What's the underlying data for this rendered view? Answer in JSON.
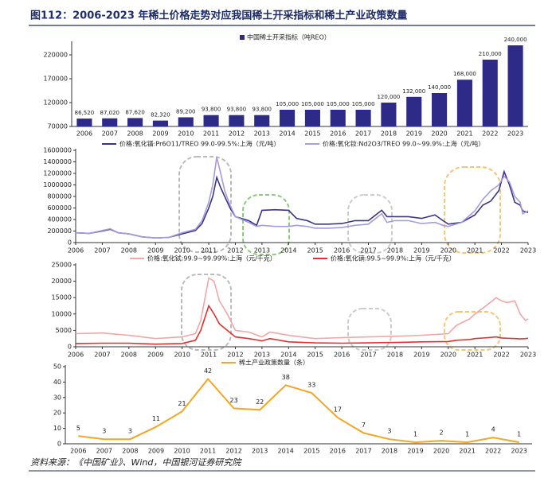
{
  "title": "图112：2006-2023 年稀土价格走势对应我国稀土开采指标和稀土产业政策数量",
  "source": "资料来源：《中国矿业》、Wind，中国银河证券研究院",
  "chart_data": [
    {
      "type": "bar",
      "categories": [
        "2006",
        "2007",
        "2008",
        "2009",
        "2010",
        "2011",
        "2012",
        "2013",
        "2014",
        "2015",
        "2016",
        "2017",
        "2018",
        "2019",
        "2020",
        "2021",
        "2022",
        "2023"
      ],
      "series": [
        {
          "name": "中国稀土开采指标（吨REO）",
          "color": "#2e2a87",
          "values": [
            86520,
            87020,
            87620,
            82320,
            89200,
            93800,
            93800,
            93800,
            105000,
            105000,
            105000,
            105000,
            120000,
            132000,
            140000,
            168000,
            210000,
            240000
          ],
          "value_labels": [
            "86,520",
            "87,020",
            "87,620",
            "82,320",
            "89,200",
            "93,800",
            "93,800",
            "93,800",
            "105,000",
            "105,000",
            "105,000",
            "105,000",
            "120,000",
            "132,000",
            "140,000",
            "168,000",
            "210,000",
            "240,000"
          ]
        }
      ],
      "ylim": [
        70000,
        245000
      ],
      "yticks": [
        70000,
        120000,
        170000,
        220000
      ],
      "legend": "top"
    },
    {
      "type": "line",
      "x": [
        2006,
        2006.5,
        2007,
        2007.3,
        2007.6,
        2008,
        2008.5,
        2009,
        2009.5,
        2010,
        2010.5,
        2010.75,
        2011,
        2011.15,
        2011.3,
        2011.45,
        2011.6,
        2011.8,
        2012,
        2012.5,
        2012.8,
        2013,
        2013.5,
        2014,
        2014.3,
        2014.7,
        2015,
        2015.5,
        2016,
        2016.5,
        2017,
        2017.5,
        2017.7,
        2018,
        2018.5,
        2019,
        2019.5,
        2019.8,
        2020,
        2020.5,
        2021,
        2021.3,
        2021.6,
        2021.9,
        2022.1,
        2022.3,
        2022.5,
        2022.7,
        2022.8,
        2023
      ],
      "series": [
        {
          "name": "价格:氧化镨:Pr6O11/TREO 99.0-99.5%:上海（元/吨）",
          "color": "#3b3487",
          "values": [
            170000,
            160000,
            200000,
            230000,
            170000,
            150000,
            100000,
            80000,
            90000,
            150000,
            210000,
            330000,
            600000,
            800000,
            1130000,
            950000,
            800000,
            600000,
            450000,
            380000,
            300000,
            560000,
            570000,
            560000,
            420000,
            380000,
            320000,
            320000,
            330000,
            380000,
            380000,
            560000,
            450000,
            450000,
            450000,
            420000,
            480000,
            380000,
            320000,
            350000,
            480000,
            650000,
            720000,
            900000,
            1230000,
            1000000,
            700000,
            650000,
            550000,
            520000
          ]
        },
        {
          "name": "价格:氧化钕:Nd2O3/TREO 99.0~99.9%:上海（元/吨）",
          "color": "#a49be0",
          "values": [
            170000,
            160000,
            210000,
            240000,
            170000,
            150000,
            100000,
            80000,
            90000,
            170000,
            230000,
            380000,
            700000,
            1000000,
            1480000,
            1200000,
            900000,
            650000,
            450000,
            350000,
            280000,
            300000,
            280000,
            280000,
            300000,
            280000,
            250000,
            250000,
            260000,
            300000,
            320000,
            500000,
            350000,
            380000,
            380000,
            330000,
            350000,
            300000,
            280000,
            350000,
            550000,
            750000,
            900000,
            1000000,
            1150000,
            1050000,
            800000,
            700000,
            500000,
            550000
          ]
        }
      ],
      "xlim": [
        2006,
        2023
      ],
      "xticks": [
        2006,
        2007,
        2008,
        2009,
        2010,
        2011,
        2012,
        2013,
        2014,
        2015,
        2016,
        2017,
        2018,
        2019,
        2020,
        2021,
        2022,
        2023
      ],
      "ylim": [
        0,
        1600000
      ],
      "yticks": [
        0,
        200000,
        400000,
        600000,
        800000,
        1000000,
        1200000,
        1400000,
        1600000
      ],
      "legend": "top"
    },
    {
      "type": "line",
      "x": [
        2006,
        2007,
        2008,
        2009,
        2010,
        2010.5,
        2010.7,
        2011,
        2011.2,
        2011.4,
        2011.7,
        2012,
        2012.5,
        2013,
        2013.3,
        2014,
        2015,
        2016,
        2017,
        2018,
        2019,
        2020,
        2020.3,
        2020.8,
        2021,
        2021.5,
        2021.8,
        2022,
        2022.2,
        2022.5,
        2022.7,
        2022.9,
        2023
      ],
      "series": [
        {
          "name": "价格:氧化铽:99.9~99.99%:上海（元/千克）",
          "color": "#f4a6a6",
          "values": [
            4000,
            4200,
            3500,
            2500,
            3000,
            4000,
            8000,
            21000,
            20000,
            14000,
            10000,
            5000,
            4500,
            3000,
            4500,
            3500,
            2500,
            2800,
            3000,
            3200,
            3500,
            4000,
            6500,
            8500,
            10000,
            13000,
            15000,
            14000,
            13500,
            14000,
            10000,
            8000,
            8500
          ]
        },
        {
          "name": "价格:氧化镝:99.5~99.9%:上海（元/千克）",
          "color": "#e53030",
          "values": [
            1000,
            1100,
            1100,
            800,
            1000,
            2000,
            5000,
            12500,
            10000,
            7000,
            5000,
            3000,
            2500,
            1800,
            2500,
            1500,
            1200,
            1100,
            1200,
            1300,
            1500,
            1600,
            2000,
            2200,
            2500,
            2800,
            3000,
            2700,
            2600,
            2500,
            2400,
            2500,
            2600
          ]
        }
      ],
      "xlim": [
        2006,
        2023
      ],
      "xticks": [
        2006,
        2007,
        2008,
        2009,
        2010,
        2011,
        2012,
        2013,
        2014,
        2015,
        2016,
        2017,
        2018,
        2019,
        2020,
        2021,
        2022,
        2023
      ],
      "ylim": [
        0,
        25000
      ],
      "yticks": [
        0,
        5000,
        10000,
        15000,
        20000,
        25000
      ],
      "legend": "top"
    },
    {
      "type": "line",
      "categories": [
        "2006",
        "2007",
        "2008",
        "2009",
        "2010",
        "2011",
        "2012",
        "2013",
        "2014",
        "2015",
        "2016",
        "2017",
        "2018",
        "2019",
        "2020",
        "2021",
        "2022",
        "2023"
      ],
      "series": [
        {
          "name": "稀土产业政策数量（条）",
          "color": "#f5a623",
          "values": [
            5,
            3,
            3,
            11,
            21,
            42,
            23,
            22,
            38,
            33,
            17,
            7,
            3,
            1,
            2,
            1,
            4,
            1
          ]
        }
      ],
      "ylim": [
        0,
        50
      ],
      "yticks": [
        0,
        10,
        20,
        30,
        40,
        50
      ],
      "legend": "top",
      "data_labels": true
    }
  ]
}
